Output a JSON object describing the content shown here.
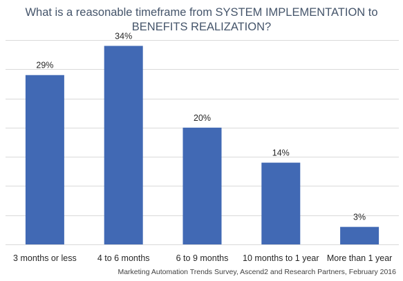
{
  "chart_data": {
    "type": "bar",
    "title_line1": "What is a reasonable timeframe from SYSTEM IMPLEMENTATION to",
    "title_line2": "BENEFITS REALIZATION?",
    "categories": [
      "3 months or less",
      "4 to 6 months",
      "6 to 9 months",
      "10 months to 1 year",
      "More than 1 year"
    ],
    "values": [
      29,
      34,
      20,
      14,
      3
    ],
    "data_labels": [
      "29%",
      "34%",
      "20%",
      "14%",
      "3%"
    ],
    "xlabel": "",
    "ylabel": "",
    "ylim": [
      0,
      35
    ],
    "grid": true,
    "legend": "none",
    "bar_color": "#4169b4",
    "grid_color": "#d9d9d9"
  },
  "source": "Marketing Automation Trends Survey, Ascend2 and Research Partners, February 2016"
}
